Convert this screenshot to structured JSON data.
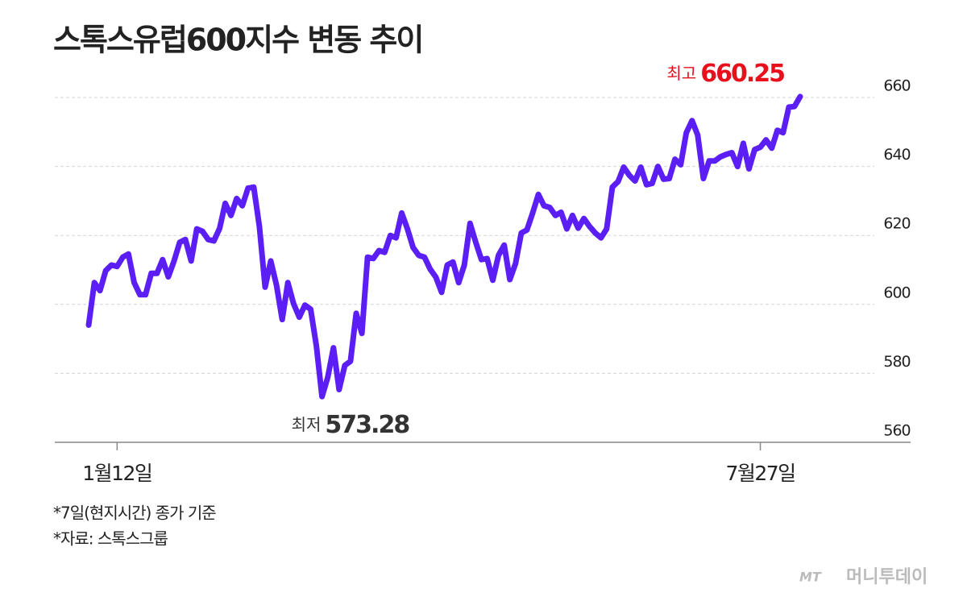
{
  "chart_data": {
    "type": "line",
    "title": "스톡스유럽600지수 변동 추이",
    "categories": [
      null,
      null,
      null,
      null,
      null,
      "1월12일",
      null,
      null,
      null,
      null,
      null,
      null,
      null,
      null,
      null,
      null,
      null,
      null,
      null,
      null,
      null,
      null,
      null,
      null,
      null,
      null,
      null,
      null,
      null,
      null,
      null,
      null,
      null,
      null,
      null,
      null,
      null,
      null,
      null,
      null,
      null,
      null,
      null,
      null,
      null,
      null,
      null,
      null,
      null,
      null,
      null,
      null,
      null,
      null,
      null,
      null,
      null,
      null,
      null,
      null,
      null,
      null,
      null,
      null,
      null,
      null,
      null,
      null,
      null,
      null,
      null,
      null,
      null,
      null,
      null,
      null,
      null,
      null,
      null,
      null,
      null,
      null,
      null,
      null,
      null,
      null,
      null,
      null,
      null,
      null,
      null,
      null,
      null,
      null,
      null,
      null,
      null,
      null,
      null,
      null,
      null,
      null,
      null,
      null,
      null,
      null,
      null,
      null,
      null,
      null,
      null,
      null,
      null,
      null,
      null,
      null,
      null,
      null,
      "7월27일",
      null,
      null,
      null,
      null,
      null,
      null,
      null
    ],
    "series": [
      {
        "color": "#5b1ff5",
        "values": [
          594,
          606.3,
          604,
          609.8,
          611.4,
          611,
          613.7,
          614.6,
          606.3,
          602.8,
          602.8,
          609,
          609,
          613,
          608,
          612.6,
          618,
          618.8,
          612.6,
          621.9,
          621.2,
          618.8,
          618.4,
          622,
          629.3,
          625.8,
          630.7,
          628.6,
          633.7,
          634,
          622.6,
          605,
          612.6,
          605.6,
          595.6,
          606.3,
          600.2,
          596.3,
          599.8,
          598.6,
          588,
          573.28,
          578.8,
          587.4,
          575.3,
          582.3,
          583.5,
          597.4,
          591.6,
          613.7,
          613.3,
          615.6,
          615.1,
          620,
          619.3,
          626.5,
          621.9,
          616.5,
          614.2,
          613.7,
          610.2,
          607.9,
          603.5,
          611.4,
          612.3,
          606.3,
          611.4,
          623.5,
          618,
          613,
          613.3,
          607,
          614.2,
          617.2,
          607.2,
          611.9,
          620.7,
          621.6,
          626.5,
          631.9,
          628.6,
          628.1,
          625.8,
          626.7,
          621.9,
          625.8,
          622.1,
          624.9,
          622.6,
          620.7,
          619.3,
          621.9,
          634,
          635.6,
          639.8,
          637.4,
          635.8,
          639.8,
          634.7,
          635.1,
          640,
          636.3,
          636.5,
          642.1,
          640.5,
          649.8,
          653.3,
          649.1,
          636.5,
          641.6,
          641.6,
          642.8,
          643.5,
          644,
          640,
          646.7,
          639.3,
          644.9,
          645.6,
          647.7,
          645.3,
          650.5,
          649.8,
          657.2,
          657.4,
          660.25
        ]
      }
    ],
    "ylim": [
      560,
      660
    ],
    "yticks": [
      560,
      580,
      600,
      620,
      640,
      660
    ],
    "grid": true,
    "annotations": [
      {
        "label": "최고",
        "value": 660.25,
        "color": "#e8101c"
      },
      {
        "label": "최저",
        "value": 573.28,
        "color": "#333333"
      }
    ]
  },
  "notes": [
    "*7일(현지시간) 종가 기준",
    "*자료: 스톡스그룹"
  ],
  "logo": {
    "mark": "MT",
    "name": "머니투데이"
  }
}
